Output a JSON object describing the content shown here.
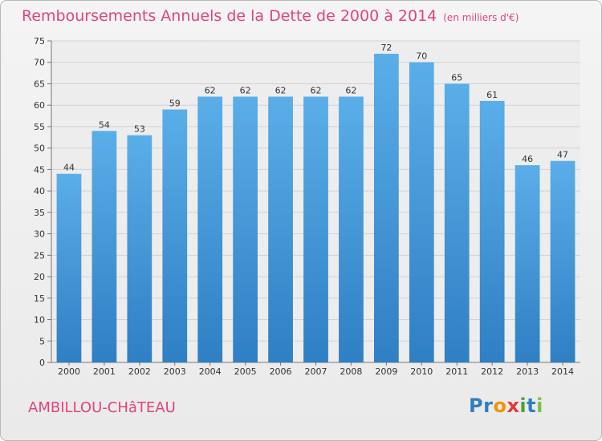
{
  "chart_data": {
    "type": "bar",
    "title": "Remboursements Annuels de la Dette de 2000 à 2014",
    "unit_note": "(en milliers d'€)",
    "categories": [
      "2000",
      "2001",
      "2002",
      "2003",
      "2004",
      "2005",
      "2006",
      "2007",
      "2008",
      "2009",
      "2010",
      "2011",
      "2012",
      "2013",
      "2014"
    ],
    "values": [
      44,
      54,
      53,
      59,
      62,
      62,
      62,
      62,
      62,
      72,
      70,
      65,
      61,
      46,
      47
    ],
    "ylim": [
      0,
      75
    ],
    "yticks": [
      0,
      5,
      10,
      15,
      20,
      25,
      30,
      35,
      40,
      45,
      50,
      55,
      60,
      65,
      70,
      75
    ],
    "grid": true,
    "bar_color": "#5aaee8",
    "bar_color_dark": "#2f7fc4"
  },
  "footer": {
    "commune": "AMBILLOU-CHâTEAU",
    "logo_letters": [
      "P",
      "r",
      "o",
      "x",
      "i",
      "t",
      "i"
    ]
  }
}
